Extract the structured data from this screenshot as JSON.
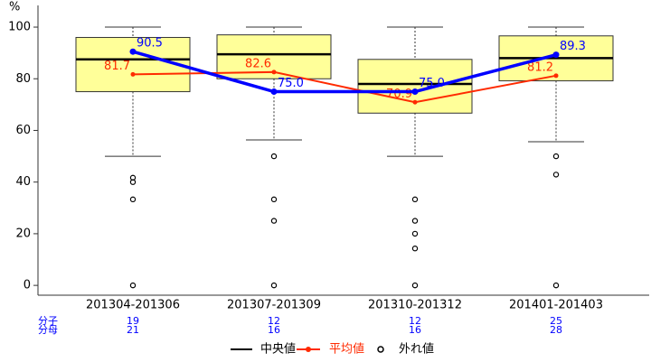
{
  "chart_data": {
    "type": "box",
    "y_label": "%",
    "categories": [
      "201304-201306",
      "201307-201309",
      "201310-201312",
      "201401-201403"
    ],
    "ylim": [
      -3.8,
      108.4
    ],
    "yticks": [
      0,
      20,
      40,
      60,
      80,
      100
    ],
    "box_color": "#ffff99",
    "median_color": "#000000",
    "boxes": [
      {
        "low": 50,
        "q1": 75,
        "median": 87.5,
        "q3": 96,
        "high": 100,
        "outliers": [
          41.7,
          40,
          33.3,
          0
        ]
      },
      {
        "low": 56.3,
        "q1": 80,
        "median": 89.5,
        "q3": 97,
        "high": 100,
        "outliers": [
          50,
          33.3,
          25,
          0
        ]
      },
      {
        "low": 50,
        "q1": 66.7,
        "median": 78,
        "q3": 87.5,
        "high": 100,
        "outliers": [
          33.3,
          25,
          20,
          14.3,
          0
        ]
      },
      {
        "low": 55.6,
        "q1": 79.2,
        "median": 88,
        "q3": 96.6,
        "high": 100,
        "outliers": [
          50,
          42.9,
          0
        ]
      }
    ],
    "series": [
      {
        "name": "平均値",
        "color": "#ff2a00",
        "values": [
          81.7,
          82.6,
          70.9,
          81.2
        ]
      },
      {
        "color": "#0000ff",
        "values": [
          90.5,
          75,
          75,
          89.3
        ],
        "value_labels": [
          "90.5",
          "75.0",
          "75.0",
          "89.3"
        ]
      }
    ],
    "legend": {
      "median": "中央値",
      "outliers": "外れ値"
    },
    "counts": {
      "numerator_label": "分子",
      "numerator": [
        19,
        12,
        12,
        25
      ],
      "denominator_label": "分母",
      "denominator": [
        21,
        16,
        16,
        28
      ]
    }
  }
}
